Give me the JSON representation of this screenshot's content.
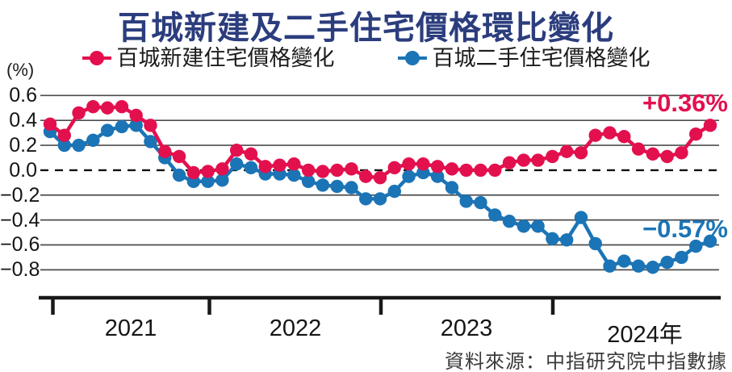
{
  "title": "百城新建及二手住宅價格環比變化",
  "y_axis_unit": "(%)",
  "legend": {
    "series1": "百城新建住宅價格變化",
    "series2": "百城二手住宅價格變化"
  },
  "annotations": {
    "new_home_last": "+0.36%",
    "second_hand_last": "−0.57%"
  },
  "source": "資料來源：中指研究院中指數據",
  "colors": {
    "new_home": "#e3104e",
    "second_hand": "#1b74b6",
    "title": "#2b3d7d",
    "grid": "#4d4d4d",
    "axis": "#191919"
  },
  "chart_data": {
    "type": "line",
    "title": "百城新建及二手住宅價格環比變化",
    "ylabel": "(%)",
    "ylim": [
      -0.9,
      0.7
    ],
    "grid": true,
    "zero_line": "dashed",
    "legend_position": "top",
    "x_tick_labels": [
      "2021",
      "2022",
      "2023",
      "2024年"
    ],
    "y_tick_labels": [
      "0.6",
      "0.4",
      "0.2",
      "0.0",
      "−0.2",
      "−0.4",
      "−0.6",
      "−0.8"
    ],
    "x": [
      "2021-01",
      "2021-02",
      "2021-03",
      "2021-04",
      "2021-05",
      "2021-06",
      "2021-07",
      "2021-08",
      "2021-09",
      "2021-10",
      "2021-11",
      "2021-12",
      "2022-01",
      "2022-02",
      "2022-03",
      "2022-04",
      "2022-05",
      "2022-06",
      "2022-07",
      "2022-08",
      "2022-09",
      "2022-10",
      "2022-11",
      "2022-12",
      "2023-01",
      "2023-02",
      "2023-03",
      "2023-04",
      "2023-05",
      "2023-06",
      "2023-07",
      "2023-08",
      "2023-09",
      "2023-10",
      "2023-11",
      "2023-12",
      "2024-01",
      "2024-02",
      "2024-03",
      "2024-04",
      "2024-05",
      "2024-06",
      "2024-07",
      "2024-08",
      "2024-09",
      "2024-10",
      "2024-11"
    ],
    "series": [
      {
        "name": "百城新建住宅價格變化",
        "color": "#e3104e",
        "end_label": "+0.36%",
        "values": [
          0.37,
          0.28,
          0.46,
          0.51,
          0.5,
          0.51,
          0.44,
          0.36,
          0.15,
          0.11,
          -0.02,
          -0.01,
          0.01,
          0.16,
          0.13,
          0.03,
          0.04,
          0.05,
          0.0,
          -0.01,
          0.0,
          0.01,
          -0.05,
          -0.06,
          0.02,
          0.05,
          0.05,
          0.03,
          0.01,
          0.0,
          0.0,
          0.0,
          0.06,
          0.08,
          0.08,
          0.11,
          0.15,
          0.14,
          0.28,
          0.3,
          0.27,
          0.17,
          0.13,
          0.11,
          0.14,
          0.29,
          0.36
        ]
      },
      {
        "name": "百城二手住宅價格變化",
        "color": "#1b74b6",
        "end_label": "−0.57%",
        "values": [
          0.31,
          0.2,
          0.2,
          0.24,
          0.32,
          0.35,
          0.36,
          0.23,
          0.1,
          -0.04,
          -0.09,
          -0.09,
          -0.08,
          0.05,
          0.02,
          -0.03,
          -0.03,
          -0.04,
          -0.09,
          -0.12,
          -0.13,
          -0.14,
          -0.23,
          -0.23,
          -0.17,
          -0.05,
          -0.02,
          -0.05,
          -0.14,
          -0.25,
          -0.26,
          -0.36,
          -0.41,
          -0.45,
          -0.45,
          -0.55,
          -0.56,
          -0.38,
          -0.59,
          -0.77,
          -0.73,
          -0.77,
          -0.78,
          -0.74,
          -0.7,
          -0.61,
          -0.57
        ]
      }
    ]
  }
}
